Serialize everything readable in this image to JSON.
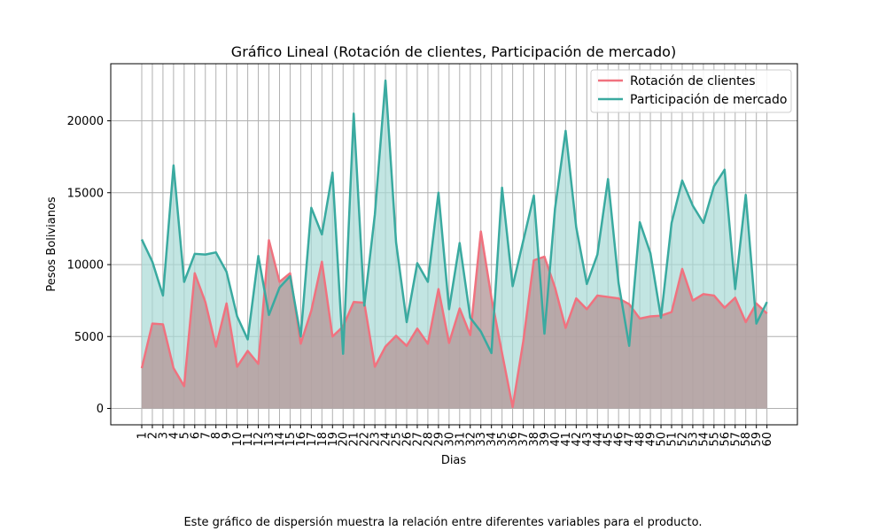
{
  "chart_data": {
    "type": "area",
    "title": "Gráfico Lineal (Rotación de clientes, Participación de mercado)",
    "xlabel": "Dias",
    "ylabel": "Pesos Bolivianos",
    "ylim": [
      0,
      24000
    ],
    "yticks": [
      "0",
      "5000",
      "10000",
      "15000",
      "20000"
    ],
    "grid": true,
    "legend_position": "top-right",
    "categories": [
      "1",
      "2",
      "3",
      "4",
      "5",
      "6",
      "7",
      "8",
      "9",
      "10",
      "11",
      "12",
      "13",
      "14",
      "15",
      "16",
      "17",
      "18",
      "19",
      "20",
      "21",
      "22",
      "23",
      "24",
      "25",
      "26",
      "27",
      "28",
      "29",
      "30",
      "31",
      "32",
      "33",
      "34",
      "35",
      "36",
      "37",
      "38",
      "39",
      "40",
      "41",
      "42",
      "43",
      "44",
      "45",
      "46",
      "47",
      "48",
      "49",
      "50",
      "51",
      "52",
      "53",
      "54",
      "55",
      "56",
      "57",
      "58",
      "59",
      "60"
    ],
    "series": [
      {
        "name": "Rotación de clientes",
        "color": "#f0727f",
        "fill": "#f0727f",
        "values": [
          2800,
          5900,
          5850,
          2800,
          1550,
          9400,
          7400,
          4300,
          7300,
          2900,
          4000,
          3100,
          11700,
          8800,
          9400,
          4500,
          6800,
          10200,
          5000,
          5700,
          7400,
          7350,
          2900,
          4300,
          5050,
          4350,
          5550,
          4500,
          8300,
          4550,
          6950,
          5100,
          12300,
          7700,
          3850,
          100,
          4650,
          10300,
          10550,
          8400,
          5600,
          7650,
          6900,
          7850,
          7750,
          7650,
          7250,
          6250,
          6400,
          6450,
          6700,
          9700,
          7500,
          7950,
          7850,
          7000,
          7700,
          6000,
          7300,
          6600
        ]
      },
      {
        "name": "Participación de mercado",
        "color": "#3aaaa0",
        "fill": "#a8dad6",
        "values": [
          11750,
          10200,
          7850,
          16900,
          8800,
          10750,
          10700,
          10850,
          9500,
          6400,
          4800,
          10600,
          6500,
          8400,
          9200,
          5000,
          13950,
          12100,
          16400,
          3800,
          20500,
          7150,
          13500,
          22800,
          11550,
          6000,
          10100,
          8800,
          15000,
          6900,
          11500,
          6300,
          5350,
          3850,
          15350,
          8500,
          11650,
          14800,
          5200,
          13900,
          19300,
          12600,
          8650,
          10700,
          15950,
          8700,
          4350,
          12950,
          10800,
          6300,
          12900,
          15850,
          14100,
          12900,
          15450,
          16600,
          8300,
          14850,
          5900,
          7400
        ]
      }
    ]
  },
  "caption": "Este gráfico de dispersión muestra la relación entre diferentes variables para el producto."
}
